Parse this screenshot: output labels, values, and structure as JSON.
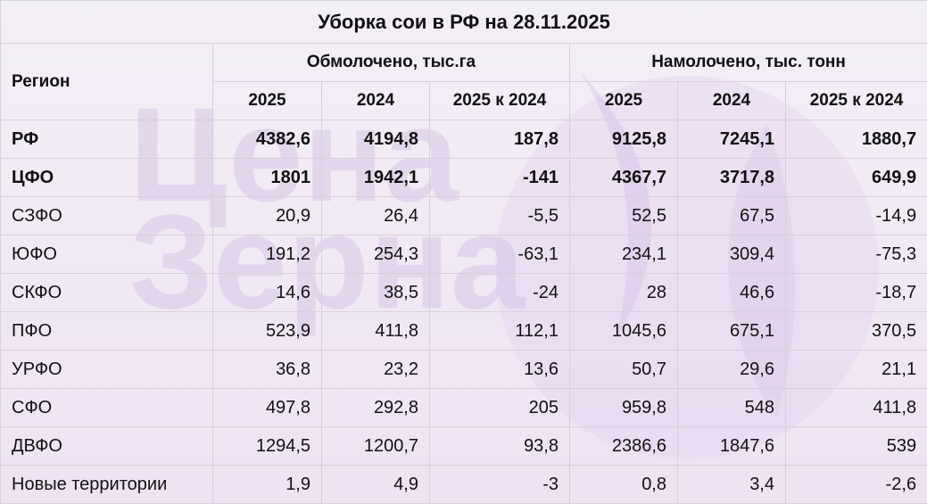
{
  "title": "Уборка сои в РФ на 28.11.2025",
  "watermark": {
    "line1": "Цена",
    "line2": "Зерна"
  },
  "header": {
    "region": "Регион",
    "group1": "Обмолочено, тыс.га",
    "group2": "Намолочено, тыс. тонн",
    "columns": [
      "2025",
      "2024",
      "2025 к 2024",
      "2025",
      "2024",
      "2025 к 2024"
    ]
  },
  "rows": [
    {
      "region": "РФ",
      "values": [
        "4382,6",
        "4194,8",
        "187,8",
        "9125,8",
        "7245,1",
        "1880,7"
      ]
    },
    {
      "region": "ЦФО",
      "values": [
        "1801",
        "1942,1",
        "-141",
        "4367,7",
        "3717,8",
        "649,9"
      ]
    },
    {
      "region": "СЗФО",
      "values": [
        "20,9",
        "26,4",
        "-5,5",
        "52,5",
        "67,5",
        "-14,9"
      ]
    },
    {
      "region": "ЮФО",
      "values": [
        "191,2",
        "254,3",
        "-63,1",
        "234,1",
        "309,4",
        "-75,3"
      ]
    },
    {
      "region": "СКФО",
      "values": [
        "14,6",
        "38,5",
        "-24",
        "28",
        "46,6",
        "-18,7"
      ]
    },
    {
      "region": "ПФО",
      "values": [
        "523,9",
        "411,8",
        "112,1",
        "1045,6",
        "675,1",
        "370,5"
      ]
    },
    {
      "region": "УРФО",
      "values": [
        "36,8",
        "23,2",
        "13,6",
        "50,7",
        "29,6",
        "21,1"
      ]
    },
    {
      "region": "СФО",
      "values": [
        "497,8",
        "292,8",
        "205",
        "959,8",
        "548",
        "411,8"
      ]
    },
    {
      "region": "ДВФО",
      "values": [
        "1294,5",
        "1200,7",
        "93,8",
        "2386,6",
        "1847,6",
        "539"
      ]
    },
    {
      "region": "Новые территории",
      "values": [
        "1,9",
        "4,9",
        "-3",
        "0,8",
        "3,4",
        "-2,6"
      ]
    }
  ],
  "colors": {
    "watermark": "#d8c6e6",
    "border": "#d6d0da"
  }
}
